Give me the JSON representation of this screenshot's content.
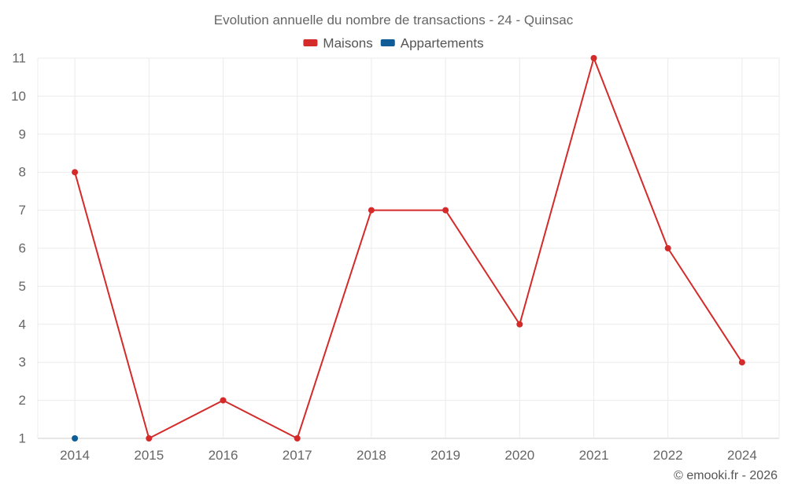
{
  "chart_data": {
    "type": "line",
    "title": "Evolution annuelle du nombre de transactions - 24 - Quinsac",
    "categories": [
      "2014",
      "2015",
      "2016",
      "2017",
      "2018",
      "2019",
      "2020",
      "2021",
      "2022",
      "2024"
    ],
    "yticks": [
      1,
      2,
      3,
      4,
      5,
      6,
      7,
      8,
      9,
      10,
      11
    ],
    "ylim": [
      1,
      11
    ],
    "xlabel": "",
    "ylabel": "",
    "grid": true,
    "legend_position": "top-center",
    "series": [
      {
        "name": "Maisons",
        "color": "#d42a2a",
        "values": [
          8,
          1,
          2,
          1,
          7,
          7,
          4,
          11,
          6,
          3
        ]
      },
      {
        "name": "Appartements",
        "color": "#0e5d96",
        "values": [
          1,
          null,
          null,
          null,
          null,
          null,
          null,
          null,
          null,
          null
        ]
      }
    ]
  },
  "credit": "© emooki.fr - 2026"
}
